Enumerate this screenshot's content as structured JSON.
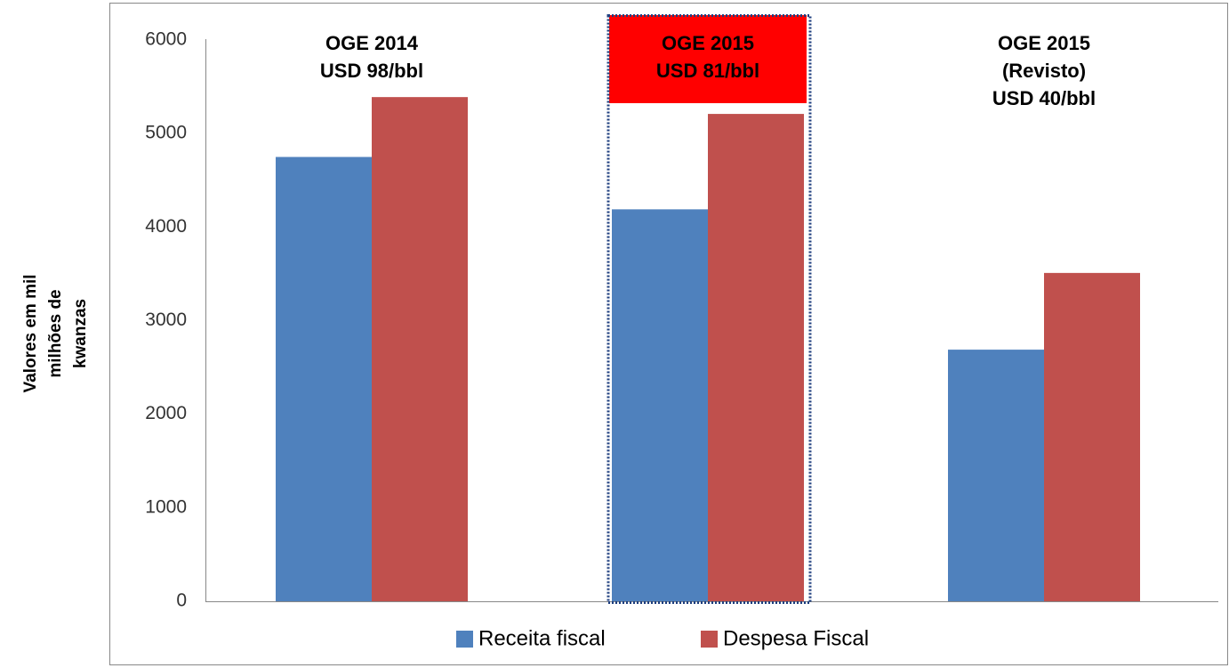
{
  "chart_data": {
    "type": "bar",
    "ylabel": [
      "Valores em mil",
      "milhões de",
      "kwanzas"
    ],
    "categories": [
      [
        "OGE 2014",
        "USD 98/bbl"
      ],
      [
        "OGE 2015",
        "USD 81/bbl"
      ],
      [
        "OGE 2015",
        "(Revisto)",
        "USD 40/bbl"
      ]
    ],
    "highlight": 1,
    "series": [
      {
        "name": "Receita fiscal",
        "color": "#4f81bd",
        "values": [
          4750,
          4190,
          2690
        ]
      },
      {
        "name": "Despesa Fiscal",
        "color": "#c0504d",
        "values": [
          5390,
          5210,
          3510
        ]
      }
    ],
    "ylim": [
      0,
      6000
    ],
    "yticks": [
      0,
      1000,
      2000,
      3000,
      4000,
      5000,
      6000
    ],
    "grid": false
  }
}
